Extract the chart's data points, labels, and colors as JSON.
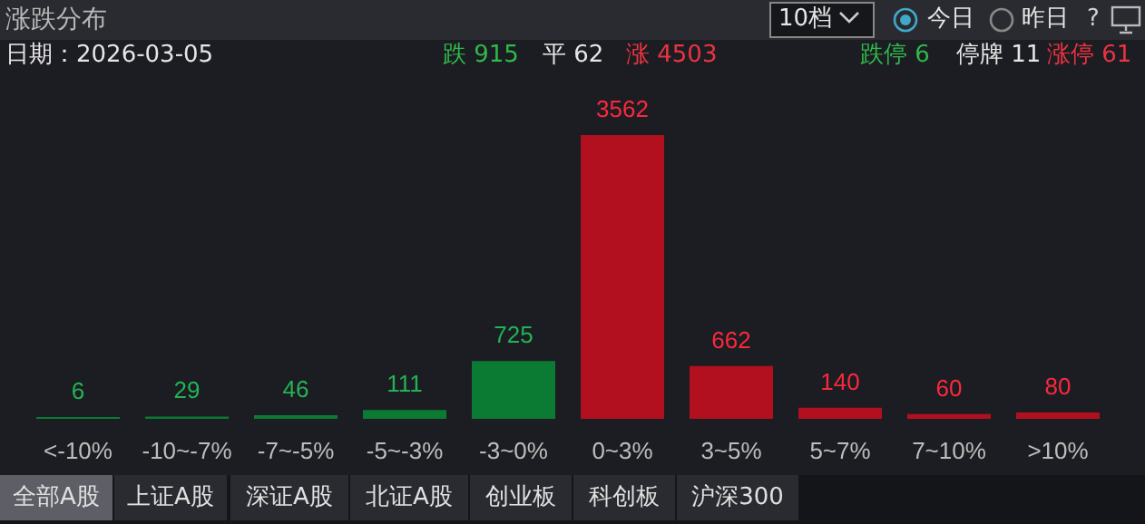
{
  "chart_data": {
    "type": "bar",
    "title": "涨跌分布",
    "categories": [
      "<-10%",
      "-10~-7%",
      "-7~-5%",
      "-5~-3%",
      "-3~0%",
      "0~3%",
      "3~5%",
      "5~7%",
      "7~10%",
      ">10%"
    ],
    "values": [
      6,
      29,
      46,
      111,
      725,
      3562,
      662,
      140,
      60,
      80
    ],
    "colors": [
      "#0b7a32",
      "#0b7a32",
      "#0b7a32",
      "#0b7a32",
      "#0b7a32",
      "#b20f1f",
      "#b20f1f",
      "#b20f1f",
      "#b20f1f",
      "#b20f1f"
    ],
    "data_labels": true,
    "grid": false,
    "annotations": [
      "日期：2026-03-05",
      "跌 915",
      "平 62",
      "涨 4503",
      "跌停 6",
      "停牌 11",
      "涨停 61",
      "10档",
      "今日",
      "昨日",
      "?",
      "全部A股",
      "上证A股",
      "深证A股",
      "北证A股",
      "创业板",
      "科创板",
      "沪深300"
    ]
  }
}
